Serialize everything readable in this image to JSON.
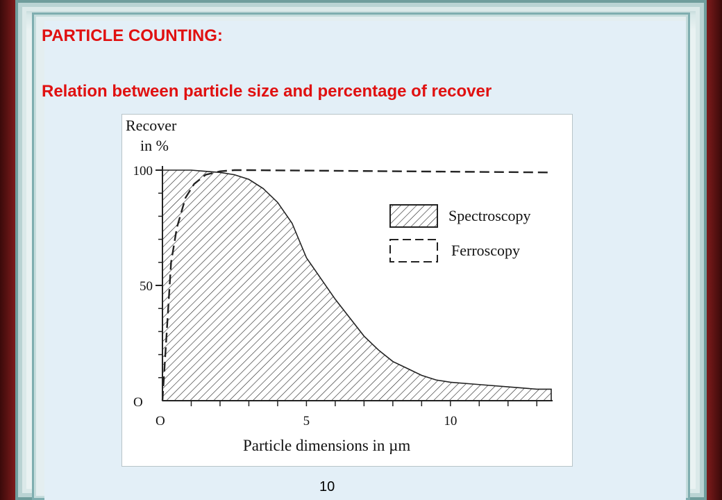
{
  "slide": {
    "title": "PARTICLE COUNTING:",
    "subtitle": "Relation between particle size and percentage of recover",
    "page_number": "10",
    "title_color": "#e01010"
  },
  "chart_data": {
    "type": "area",
    "ylabel_line1": "Recover",
    "ylabel_line2": "in %",
    "xlabel": "Particle dimensions in µm",
    "x_origin_label": "O",
    "y_origin_label": "O",
    "xlim": [
      0,
      13.5
    ],
    "ylim": [
      0,
      100
    ],
    "y_ticks": [
      {
        "value": 100,
        "label": "100"
      },
      {
        "value": 50,
        "label": "50"
      }
    ],
    "x_ticks": [
      {
        "value": 5,
        "label": "5"
      },
      {
        "value": 10,
        "label": "10"
      }
    ],
    "legend_position": "right",
    "series": [
      {
        "name": "Spectroscopy",
        "style": "hatched-area",
        "x": [
          0,
          1,
          1.5,
          2,
          2.5,
          3,
          3.5,
          4,
          4.5,
          5,
          5.5,
          6,
          6.5,
          7,
          7.5,
          8,
          8.5,
          9,
          9.5,
          10,
          11,
          12,
          13,
          13.5
        ],
        "values": [
          100,
          100,
          99.5,
          99,
          98,
          96,
          92,
          86,
          77,
          62,
          53,
          44,
          36,
          28,
          22,
          17,
          14,
          11,
          9,
          8,
          7,
          6,
          5,
          5
        ]
      },
      {
        "name": "Ferroscopy",
        "style": "dashed-line",
        "x": [
          0,
          0.1,
          0.3,
          0.5,
          0.8,
          1.1,
          1.5,
          2,
          2.5,
          3,
          13.5
        ],
        "values": [
          0,
          20,
          60,
          75,
          88,
          94,
          98,
          99.5,
          100,
          100,
          99
        ]
      }
    ]
  }
}
